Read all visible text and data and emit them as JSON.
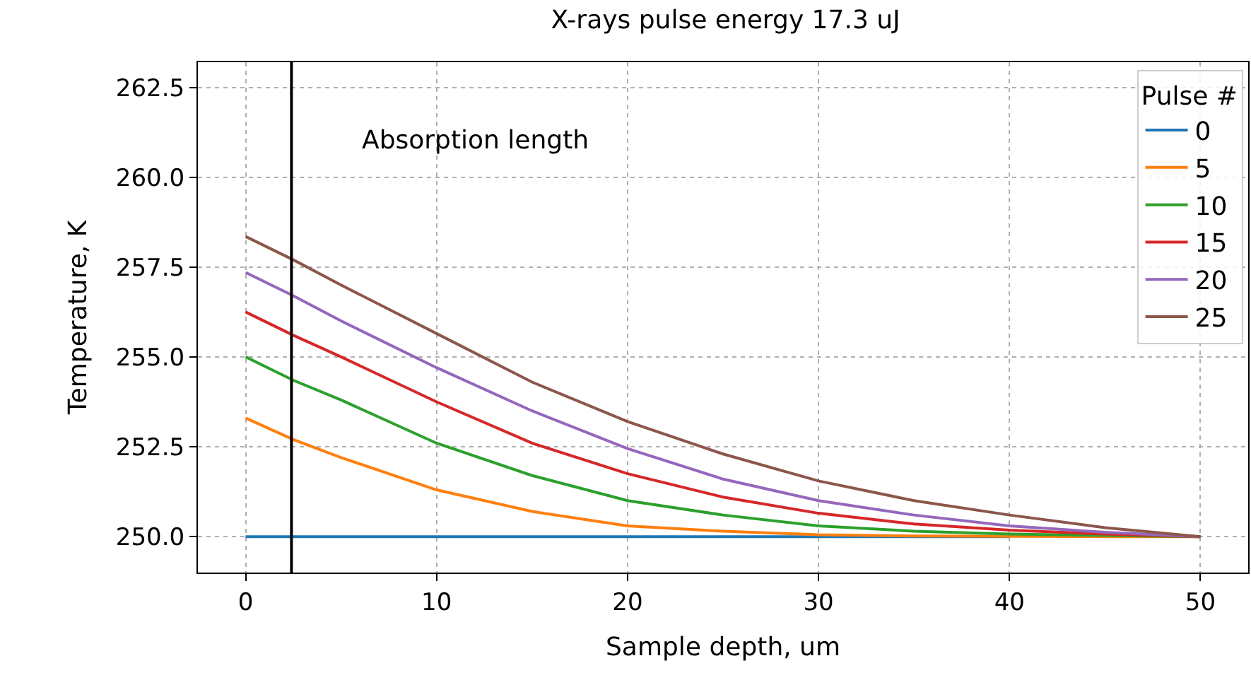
{
  "chart_data": {
    "type": "line",
    "title": "X-rays pulse energy 17.3 uJ",
    "xlabel": "Sample depth, um",
    "ylabel": "Temperature, K",
    "legend_title": "Pulse #",
    "legend": "top right",
    "grid": true,
    "line_style": "solid",
    "x": [
      0,
      2.5,
      5,
      10,
      15,
      20,
      25,
      30,
      35,
      40,
      45,
      50
    ],
    "xlim": [
      -2.5,
      52.5
    ],
    "xticks": [
      0,
      10,
      20,
      30,
      40,
      50
    ],
    "ylim": [
      249.0,
      263.2
    ],
    "yticks": [
      {
        "value": 250,
        "label": "250.0"
      },
      252.5,
      {
        "value": 255,
        "label": "255.0"
      },
      257.5,
      {
        "value": 260,
        "label": "260.0"
      },
      262.5
    ],
    "series": [
      {
        "name": "0",
        "color": "#1f77b4",
        "values": [
          250,
          250,
          250,
          250,
          250,
          250,
          250,
          250,
          250,
          250,
          null,
          null
        ]
      },
      {
        "name": "5",
        "color": "#ff7f0e",
        "values": [
          253.3,
          252.7,
          252.2,
          251.3,
          250.7,
          250.3,
          250.15,
          250.05,
          250.02,
          250.01,
          250.0,
          250
        ]
      },
      {
        "name": "10",
        "color": "#2ca02c",
        "values": [
          255.0,
          254.35,
          253.8,
          252.6,
          251.7,
          251.0,
          250.6,
          250.3,
          250.15,
          250.07,
          250.03,
          250
        ]
      },
      {
        "name": "15",
        "color": "#d62728",
        "values": [
          256.25,
          255.6,
          255.0,
          253.75,
          252.6,
          251.75,
          251.1,
          250.65,
          250.35,
          250.18,
          250.07,
          250
        ]
      },
      {
        "name": "20",
        "color": "#9467bd",
        "values": [
          257.35,
          256.7,
          256.0,
          254.7,
          253.5,
          252.45,
          251.6,
          251.0,
          250.6,
          250.3,
          250.12,
          250
        ]
      },
      {
        "name": "25",
        "color": "#8c564b",
        "values": [
          258.35,
          257.7,
          257.0,
          255.65,
          254.3,
          253.2,
          252.3,
          251.55,
          251.0,
          250.6,
          250.25,
          250
        ]
      }
    ],
    "ref_lines": [
      {
        "axis": "x",
        "value": 2.4,
        "label": "Absorption length",
        "color": "#000000",
        "line_style": "solid"
      }
    ]
  }
}
